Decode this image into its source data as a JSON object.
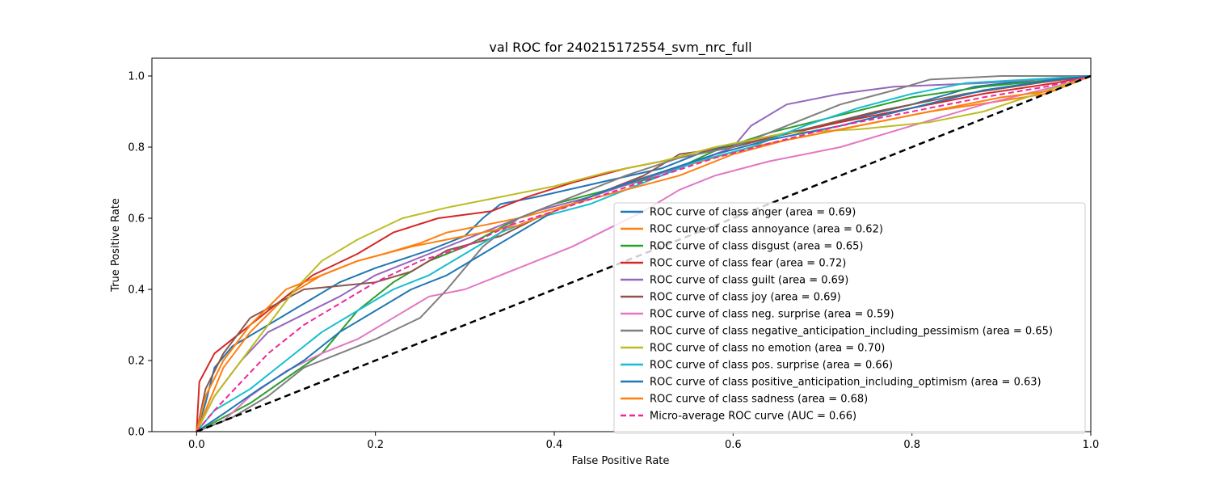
{
  "chart_data": {
    "type": "line",
    "title": "val ROC for 240215172554_svm_nrc_full",
    "xlabel": "False Positive Rate",
    "ylabel": "True Positive Rate",
    "xlim": [
      -0.05,
      1.0
    ],
    "ylim": [
      0.0,
      1.05
    ],
    "x_ticks": [
      "0.0",
      "0.2",
      "0.4",
      "0.6",
      "0.8",
      "1.0"
    ],
    "y_ticks": [
      "0.0",
      "0.2",
      "0.4",
      "0.6",
      "0.8",
      "1.0"
    ],
    "grid": false,
    "legend_position": "lower-right",
    "series": [
      {
        "name": "ROC curve of class anger (area = 0.69)",
        "color": "#1f77b4",
        "dash": "solid",
        "points": [
          [
            0,
            0
          ],
          [
            0.01,
            0.08
          ],
          [
            0.02,
            0.18
          ],
          [
            0.04,
            0.24
          ],
          [
            0.08,
            0.3
          ],
          [
            0.12,
            0.36
          ],
          [
            0.16,
            0.42
          ],
          [
            0.2,
            0.46
          ],
          [
            0.26,
            0.51
          ],
          [
            0.3,
            0.55
          ],
          [
            0.32,
            0.6
          ],
          [
            0.34,
            0.64
          ],
          [
            0.38,
            0.66
          ],
          [
            0.45,
            0.7
          ],
          [
            0.52,
            0.74
          ],
          [
            0.57,
            0.79
          ],
          [
            0.62,
            0.82
          ],
          [
            0.7,
            0.86
          ],
          [
            0.8,
            0.92
          ],
          [
            0.87,
            0.97
          ],
          [
            0.94,
            0.99
          ],
          [
            1,
            1
          ]
        ]
      },
      {
        "name": "ROC curve of class annoyance (area = 0.62)",
        "color": "#ff7f0e",
        "dash": "solid",
        "points": [
          [
            0,
            0
          ],
          [
            0.01,
            0.06
          ],
          [
            0.03,
            0.18
          ],
          [
            0.06,
            0.28
          ],
          [
            0.1,
            0.38
          ],
          [
            0.14,
            0.44
          ],
          [
            0.18,
            0.48
          ],
          [
            0.21,
            0.5
          ],
          [
            0.25,
            0.53
          ],
          [
            0.28,
            0.56
          ],
          [
            0.32,
            0.58
          ],
          [
            0.36,
            0.6
          ],
          [
            0.42,
            0.64
          ],
          [
            0.48,
            0.7
          ],
          [
            0.55,
            0.75
          ],
          [
            0.62,
            0.8
          ],
          [
            0.72,
            0.85
          ],
          [
            0.82,
            0.9
          ],
          [
            0.9,
            0.93
          ],
          [
            0.95,
            0.95
          ],
          [
            1,
            1
          ]
        ]
      },
      {
        "name": "ROC curve of class disgust (area = 0.65)",
        "color": "#2ca02c",
        "dash": "solid",
        "points": [
          [
            0,
            0
          ],
          [
            0.03,
            0.04
          ],
          [
            0.06,
            0.08
          ],
          [
            0.1,
            0.15
          ],
          [
            0.14,
            0.22
          ],
          [
            0.18,
            0.34
          ],
          [
            0.22,
            0.42
          ],
          [
            0.26,
            0.48
          ],
          [
            0.3,
            0.52
          ],
          [
            0.33,
            0.56
          ],
          [
            0.36,
            0.6
          ],
          [
            0.4,
            0.64
          ],
          [
            0.46,
            0.68
          ],
          [
            0.52,
            0.72
          ],
          [
            0.58,
            0.79
          ],
          [
            0.64,
            0.84
          ],
          [
            0.72,
            0.89
          ],
          [
            0.8,
            0.94
          ],
          [
            0.88,
            0.97
          ],
          [
            1,
            1
          ]
        ]
      },
      {
        "name": "ROC curve of class fear (area = 0.72)",
        "color": "#d62728",
        "dash": "solid",
        "points": [
          [
            0,
            0
          ],
          [
            0.003,
            0.14
          ],
          [
            0.02,
            0.22
          ],
          [
            0.05,
            0.28
          ],
          [
            0.09,
            0.36
          ],
          [
            0.13,
            0.44
          ],
          [
            0.18,
            0.5
          ],
          [
            0.22,
            0.56
          ],
          [
            0.27,
            0.6
          ],
          [
            0.33,
            0.62
          ],
          [
            0.37,
            0.66
          ],
          [
            0.42,
            0.7
          ],
          [
            0.48,
            0.74
          ],
          [
            0.56,
            0.78
          ],
          [
            0.63,
            0.82
          ],
          [
            0.72,
            0.87
          ],
          [
            0.8,
            0.91
          ],
          [
            0.88,
            0.95
          ],
          [
            0.96,
            0.98
          ],
          [
            1,
            1
          ]
        ]
      },
      {
        "name": "ROC curve of class guilt (area = 0.69)",
        "color": "#9467bd",
        "dash": "solid",
        "points": [
          [
            0,
            0
          ],
          [
            0.02,
            0.1
          ],
          [
            0.05,
            0.2
          ],
          [
            0.08,
            0.28
          ],
          [
            0.12,
            0.33
          ],
          [
            0.16,
            0.38
          ],
          [
            0.2,
            0.44
          ],
          [
            0.26,
            0.5
          ],
          [
            0.32,
            0.56
          ],
          [
            0.38,
            0.62
          ],
          [
            0.44,
            0.66
          ],
          [
            0.5,
            0.71
          ],
          [
            0.56,
            0.76
          ],
          [
            0.6,
            0.8
          ],
          [
            0.62,
            0.86
          ],
          [
            0.66,
            0.92
          ],
          [
            0.72,
            0.95
          ],
          [
            0.78,
            0.97
          ],
          [
            0.88,
            0.98
          ],
          [
            1,
            1
          ]
        ]
      },
      {
        "name": "ROC curve of class joy (area = 0.69)",
        "color": "#8c564b",
        "dash": "solid",
        "points": [
          [
            0,
            0
          ],
          [
            0.01,
            0.12
          ],
          [
            0.03,
            0.22
          ],
          [
            0.06,
            0.32
          ],
          [
            0.09,
            0.36
          ],
          [
            0.12,
            0.4
          ],
          [
            0.16,
            0.41
          ],
          [
            0.2,
            0.42
          ],
          [
            0.24,
            0.45
          ],
          [
            0.28,
            0.51
          ],
          [
            0.34,
            0.55
          ],
          [
            0.38,
            0.6
          ],
          [
            0.44,
            0.66
          ],
          [
            0.5,
            0.72
          ],
          [
            0.54,
            0.78
          ],
          [
            0.6,
            0.8
          ],
          [
            0.68,
            0.85
          ],
          [
            0.76,
            0.9
          ],
          [
            0.86,
            0.95
          ],
          [
            0.94,
            0.98
          ],
          [
            1,
            1
          ]
        ]
      },
      {
        "name": "ROC curve of class neg. surprise (area = 0.59)",
        "color": "#e377c2",
        "dash": "solid",
        "points": [
          [
            0,
            0
          ],
          [
            0.03,
            0.03
          ],
          [
            0.06,
            0.1
          ],
          [
            0.1,
            0.17
          ],
          [
            0.14,
            0.22
          ],
          [
            0.18,
            0.26
          ],
          [
            0.22,
            0.32
          ],
          [
            0.26,
            0.38
          ],
          [
            0.3,
            0.4
          ],
          [
            0.34,
            0.44
          ],
          [
            0.38,
            0.48
          ],
          [
            0.42,
            0.52
          ],
          [
            0.46,
            0.57
          ],
          [
            0.5,
            0.62
          ],
          [
            0.54,
            0.68
          ],
          [
            0.58,
            0.72
          ],
          [
            0.64,
            0.76
          ],
          [
            0.72,
            0.8
          ],
          [
            0.8,
            0.86
          ],
          [
            0.88,
            0.92
          ],
          [
            0.96,
            0.97
          ],
          [
            1,
            1
          ]
        ]
      },
      {
        "name": "ROC curve of class negative_anticipation_including_pessimism (area = 0.65)",
        "color": "#7f7f7f",
        "dash": "solid",
        "points": [
          [
            0,
            0
          ],
          [
            0.04,
            0.04
          ],
          [
            0.08,
            0.1
          ],
          [
            0.12,
            0.18
          ],
          [
            0.16,
            0.22
          ],
          [
            0.2,
            0.26
          ],
          [
            0.25,
            0.32
          ],
          [
            0.28,
            0.4
          ],
          [
            0.32,
            0.52
          ],
          [
            0.36,
            0.6
          ],
          [
            0.42,
            0.66
          ],
          [
            0.48,
            0.72
          ],
          [
            0.54,
            0.77
          ],
          [
            0.6,
            0.8
          ],
          [
            0.66,
            0.86
          ],
          [
            0.72,
            0.92
          ],
          [
            0.78,
            0.96
          ],
          [
            0.82,
            0.99
          ],
          [
            0.9,
            1.0
          ],
          [
            1,
            1
          ]
        ]
      },
      {
        "name": "ROC curve of class no emotion (area = 0.70)",
        "color": "#bcbd22",
        "dash": "solid",
        "points": [
          [
            0,
            0
          ],
          [
            0.02,
            0.1
          ],
          [
            0.05,
            0.2
          ],
          [
            0.08,
            0.3
          ],
          [
            0.11,
            0.4
          ],
          [
            0.14,
            0.48
          ],
          [
            0.18,
            0.54
          ],
          [
            0.23,
            0.6
          ],
          [
            0.28,
            0.63
          ],
          [
            0.34,
            0.66
          ],
          [
            0.4,
            0.69
          ],
          [
            0.46,
            0.73
          ],
          [
            0.52,
            0.76
          ],
          [
            0.58,
            0.8
          ],
          [
            0.66,
            0.84
          ],
          [
            0.74,
            0.85
          ],
          [
            0.82,
            0.87
          ],
          [
            0.88,
            0.9
          ],
          [
            0.94,
            0.95
          ],
          [
            1,
            1
          ]
        ]
      },
      {
        "name": "ROC curve of class pos. surprise (area = 0.66)",
        "color": "#17becf",
        "dash": "solid",
        "points": [
          [
            0,
            0
          ],
          [
            0.02,
            0.06
          ],
          [
            0.06,
            0.12
          ],
          [
            0.1,
            0.2
          ],
          [
            0.14,
            0.28
          ],
          [
            0.18,
            0.34
          ],
          [
            0.22,
            0.4
          ],
          [
            0.26,
            0.44
          ],
          [
            0.3,
            0.5
          ],
          [
            0.34,
            0.56
          ],
          [
            0.38,
            0.6
          ],
          [
            0.44,
            0.64
          ],
          [
            0.5,
            0.7
          ],
          [
            0.56,
            0.76
          ],
          [
            0.62,
            0.8
          ],
          [
            0.68,
            0.86
          ],
          [
            0.74,
            0.91
          ],
          [
            0.8,
            0.95
          ],
          [
            0.86,
            0.98
          ],
          [
            1,
            1
          ]
        ]
      },
      {
        "name": "ROC curve of class positive_anticipation_including_optimism (area = 0.63)",
        "color": "#1f77b4",
        "dash": "solid",
        "points": [
          [
            0,
            0
          ],
          [
            0.03,
            0.05
          ],
          [
            0.07,
            0.12
          ],
          [
            0.12,
            0.2
          ],
          [
            0.16,
            0.28
          ],
          [
            0.2,
            0.34
          ],
          [
            0.24,
            0.4
          ],
          [
            0.28,
            0.44
          ],
          [
            0.32,
            0.5
          ],
          [
            0.36,
            0.56
          ],
          [
            0.4,
            0.62
          ],
          [
            0.46,
            0.68
          ],
          [
            0.52,
            0.73
          ],
          [
            0.58,
            0.78
          ],
          [
            0.64,
            0.82
          ],
          [
            0.72,
            0.86
          ],
          [
            0.8,
            0.91
          ],
          [
            0.88,
            0.96
          ],
          [
            0.96,
            0.99
          ],
          [
            1,
            1
          ]
        ]
      },
      {
        "name": "ROC curve of class sadness (area = 0.68)",
        "color": "#ff7f0e",
        "dash": "solid",
        "points": [
          [
            0,
            0
          ],
          [
            0.01,
            0.1
          ],
          [
            0.03,
            0.2
          ],
          [
            0.06,
            0.3
          ],
          [
            0.1,
            0.4
          ],
          [
            0.14,
            0.44
          ],
          [
            0.18,
            0.48
          ],
          [
            0.24,
            0.52
          ],
          [
            0.3,
            0.55
          ],
          [
            0.36,
            0.58
          ],
          [
            0.42,
            0.64
          ],
          [
            0.48,
            0.68
          ],
          [
            0.54,
            0.72
          ],
          [
            0.6,
            0.78
          ],
          [
            0.66,
            0.82
          ],
          [
            0.74,
            0.86
          ],
          [
            0.82,
            0.9
          ],
          [
            0.9,
            0.94
          ],
          [
            0.96,
            0.96
          ],
          [
            1,
            1
          ]
        ]
      },
      {
        "name": "Micro-average ROC curve (AUC = 0.66)",
        "color": "#f0269a",
        "dash": "dashed",
        "points": [
          [
            0,
            0
          ],
          [
            0.02,
            0.06
          ],
          [
            0.05,
            0.14
          ],
          [
            0.08,
            0.22
          ],
          [
            0.12,
            0.3
          ],
          [
            0.16,
            0.36
          ],
          [
            0.2,
            0.42
          ],
          [
            0.25,
            0.48
          ],
          [
            0.3,
            0.52
          ],
          [
            0.35,
            0.58
          ],
          [
            0.4,
            0.62
          ],
          [
            0.46,
            0.67
          ],
          [
            0.52,
            0.72
          ],
          [
            0.58,
            0.77
          ],
          [
            0.64,
            0.81
          ],
          [
            0.72,
            0.86
          ],
          [
            0.8,
            0.9
          ],
          [
            0.88,
            0.94
          ],
          [
            0.95,
            0.97
          ],
          [
            1,
            1
          ]
        ]
      }
    ],
    "reference_line": {
      "points": [
        [
          0,
          0
        ],
        [
          1,
          1
        ]
      ],
      "color": "#000000",
      "dash": "dashed"
    }
  }
}
